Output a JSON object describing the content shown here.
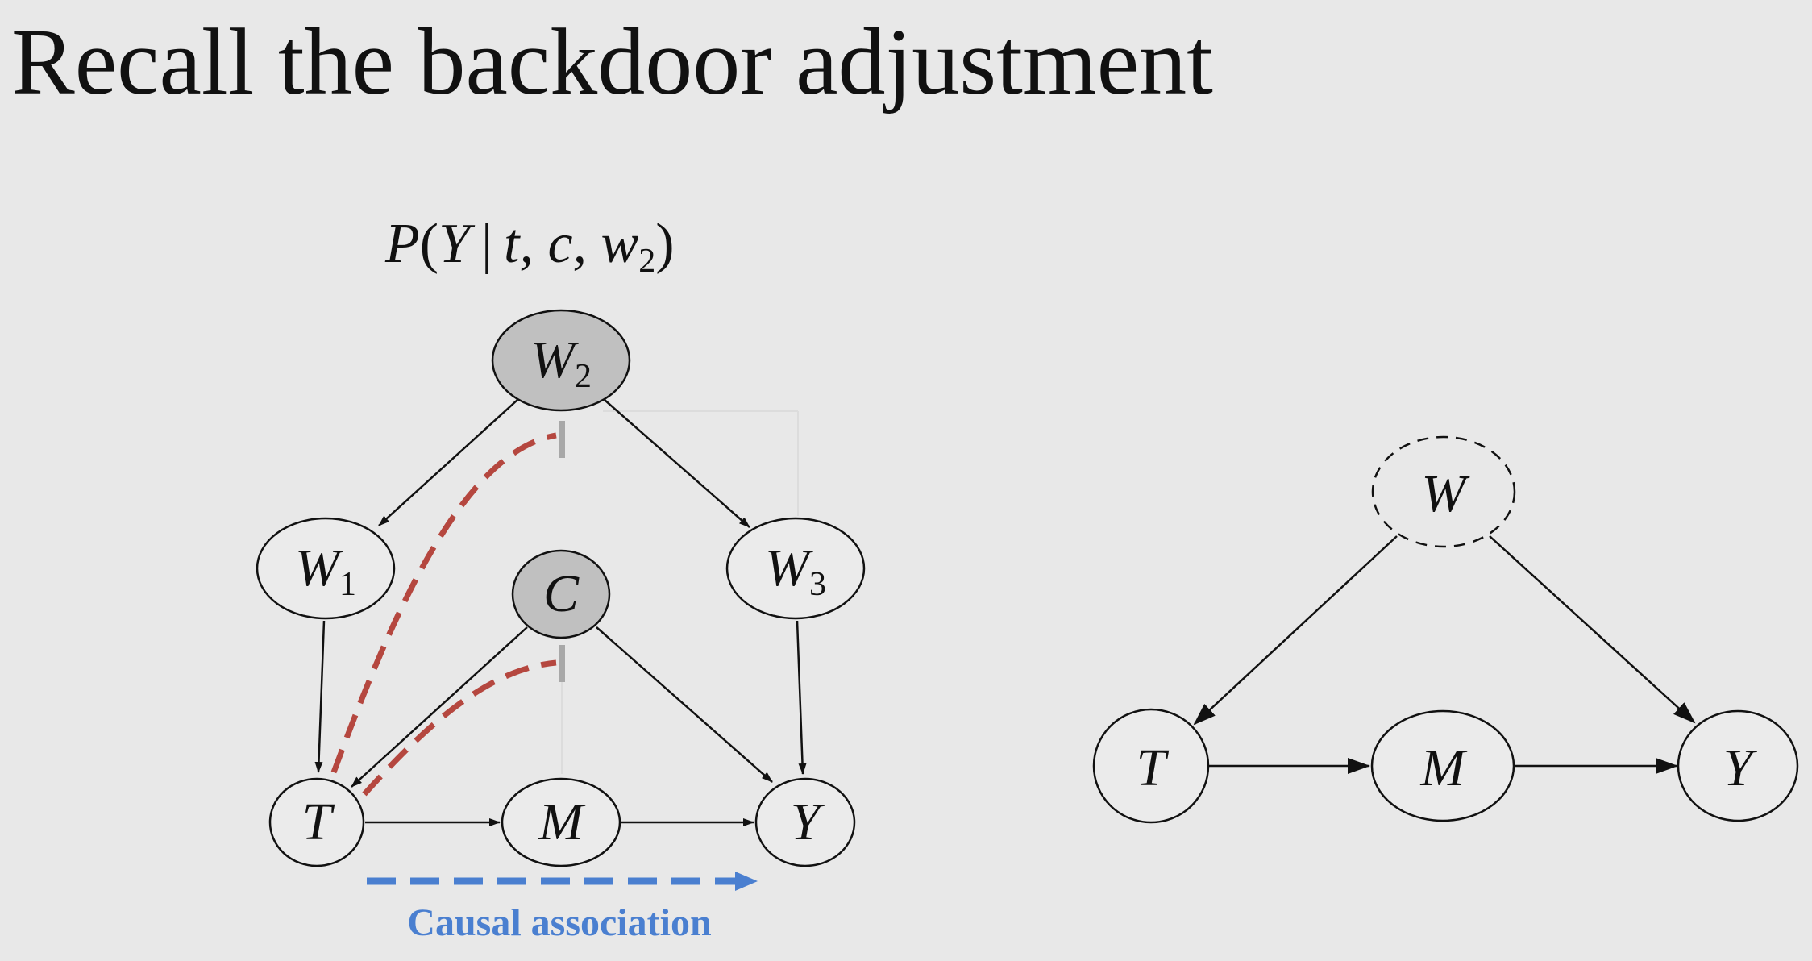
{
  "slide": {
    "title": "Recall the backdoor adjustment"
  },
  "left_diagram": {
    "formula": {
      "p": "P",
      "open": "(",
      "y": "Y",
      "bar": "|",
      "args": "t, c, w",
      "sub": "2",
      "close": ")"
    },
    "nodes": {
      "w2": {
        "main": "W",
        "sub": "2"
      },
      "w1": {
        "main": "W",
        "sub": "1"
      },
      "w3": {
        "main": "W",
        "sub": "3"
      },
      "c": {
        "main": "C"
      },
      "t": {
        "main": "T"
      },
      "m": {
        "main": "M"
      },
      "y": {
        "main": "Y"
      }
    },
    "conditioned_nodes": [
      "W2",
      "C"
    ],
    "blocked_path_color": "#b5473f",
    "causal_label": "Causal association",
    "causal_color": "#4a7fd0"
  },
  "right_diagram": {
    "nodes": {
      "w": {
        "main": "W"
      },
      "t": {
        "main": "T"
      },
      "m": {
        "main": "M"
      },
      "y": {
        "main": "Y"
      }
    },
    "unobserved_node": "W"
  },
  "colors": {
    "background": "#e8e8e8",
    "conditioned_fill": "#c0c0c0",
    "node_fill": "#ebebeb",
    "edge": "#111111",
    "blocker": "#a8a8a8"
  }
}
